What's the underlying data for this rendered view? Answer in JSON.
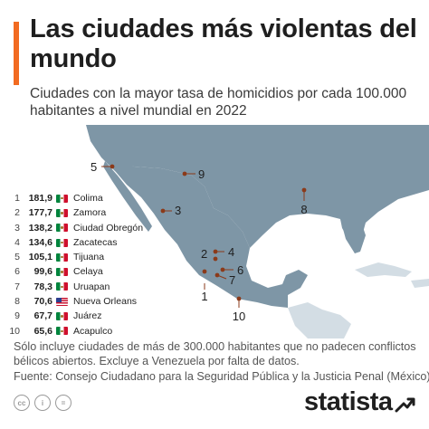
{
  "header": {
    "title": "Las ciudades más violentas del mundo",
    "subtitle": "Ciudades con la mayor tasa de homicidios por cada 100.000 habitantes a nivel mundial en 2022",
    "accent_color": "#f26b21"
  },
  "chart_data": {
    "type": "table",
    "title": "Las ciudades más violentas del mundo",
    "subtitle": "Ciudades con la mayor tasa de homicidios por cada 100.000 habitantes a nivel mundial en 2022",
    "columns": [
      "rank",
      "value",
      "city",
      "country_flag"
    ],
    "rows": [
      {
        "rank": "1",
        "value": "181,9",
        "city": "Colima",
        "flag": "mexico-flag",
        "marker": "1"
      },
      {
        "rank": "2",
        "value": "177,7",
        "city": "Zamora",
        "flag": "mexico-flag",
        "marker": "2"
      },
      {
        "rank": "3",
        "value": "138,2",
        "city": "Ciudad Obregón",
        "flag": "mexico-flag",
        "marker": "3"
      },
      {
        "rank": "4",
        "value": "134,6",
        "city": "Zacatecas",
        "flag": "mexico-flag",
        "marker": "4"
      },
      {
        "rank": "5",
        "value": "105,1",
        "city": "Tijuana",
        "flag": "mexico-flag",
        "marker": "5"
      },
      {
        "rank": "6",
        "value": "99,6",
        "city": "Celaya",
        "flag": "mexico-flag",
        "marker": "6"
      },
      {
        "rank": "7",
        "value": "78,3",
        "city": "Uruapan",
        "flag": "mexico-flag",
        "marker": "7"
      },
      {
        "rank": "8",
        "value": "70,6",
        "city": "Nueva Orleans",
        "flag": "usa-flag",
        "marker": "8"
      },
      {
        "rank": "9",
        "value": "67,7",
        "city": "Juárez",
        "flag": "mexico-flag",
        "marker": "9"
      },
      {
        "rank": "10",
        "value": "65,6",
        "city": "Acapulco",
        "flag": "mexico-flag",
        "marker": "10"
      }
    ],
    "map": {
      "region": "Mexico, southern United States and Caribbean",
      "land_color_highlight": "#7e96a6",
      "land_color_other": "#d3dde4",
      "water_color": "#ffffff",
      "marker_color": "#8b3a1a"
    }
  },
  "footer": {
    "note": "Sólo incluye ciudades de más de 300.000 habitantes que no padecen conflictos bélicos abiertos. Excluye a Venezuela por falta de datos.",
    "source": "Fuente: Consejo Ciudadano para la Seguridad Pública y la Justicia Penal (México)",
    "license_icons": [
      "cc-icon",
      "info-icon",
      "equals-icon"
    ],
    "brand": "statista",
    "brand_icon": "statista-arrow-icon"
  }
}
